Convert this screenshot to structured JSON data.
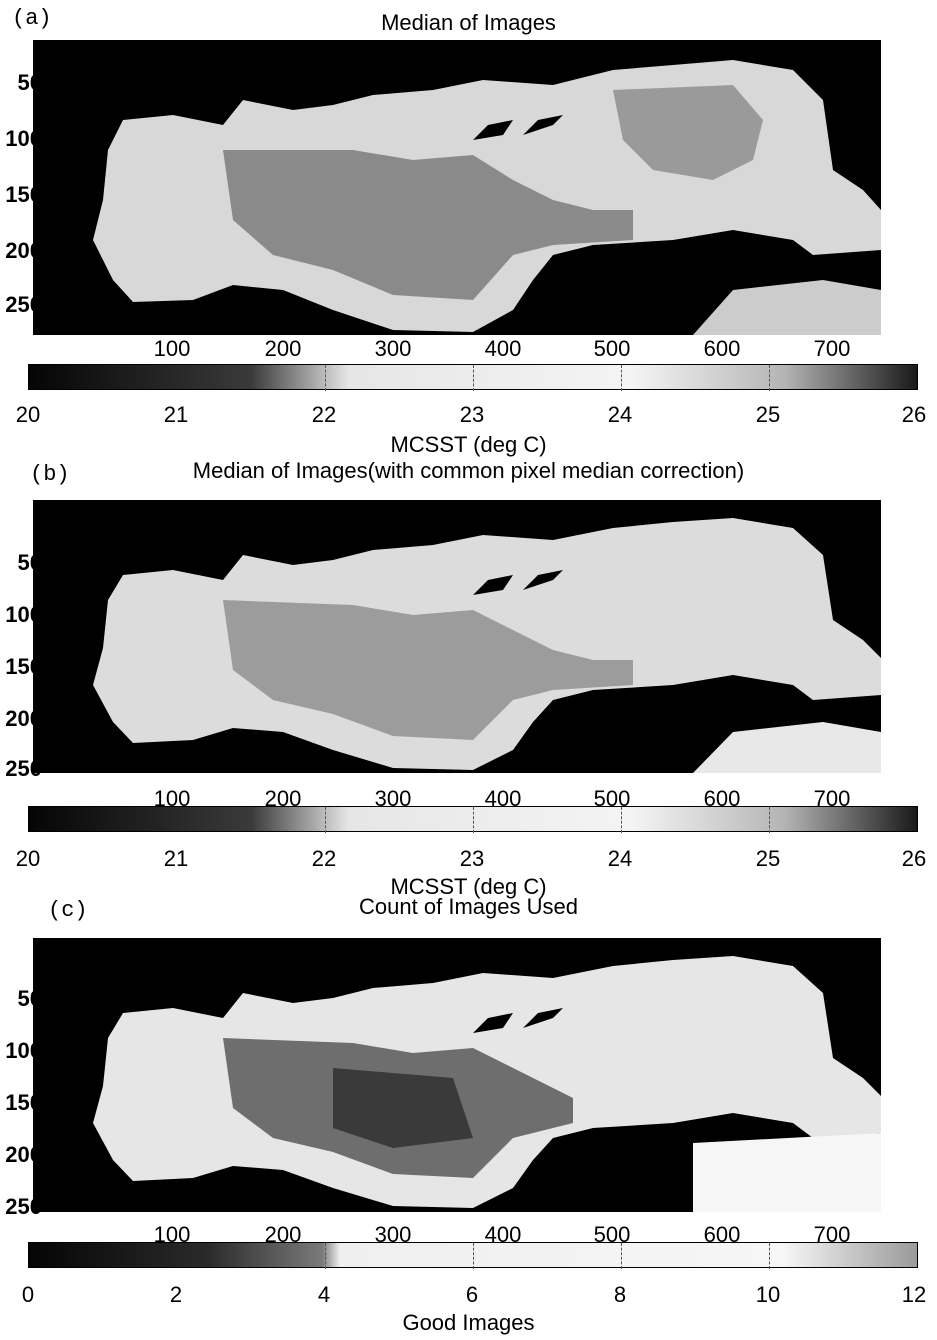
{
  "panels": [
    {
      "letter": "(a)",
      "title": "Median of Images",
      "y_ticks": [
        "50",
        "100",
        "150",
        "200",
        "250"
      ],
      "x_ticks": [
        "100",
        "200",
        "300",
        "400",
        "500",
        "600",
        "700"
      ],
      "colorbar_ticks": [
        "20",
        "21",
        "22",
        "23",
        "24",
        "25",
        "26"
      ],
      "colorbar_label": "MCSST (deg C)"
    },
    {
      "letter": "(b)",
      "title": "Median of Images(with common pixel median correction)",
      "y_ticks": [
        "50",
        "100",
        "150",
        "200",
        "250"
      ],
      "x_ticks": [
        "100",
        "200",
        "300",
        "400",
        "500",
        "600",
        "700"
      ],
      "colorbar_ticks": [
        "20",
        "21",
        "22",
        "23",
        "24",
        "25",
        "26"
      ],
      "colorbar_label": "MCSST (deg C)"
    },
    {
      "letter": "(c)",
      "title": "Count of Images Used",
      "y_ticks": [
        "50",
        "100",
        "150",
        "200",
        "250"
      ],
      "x_ticks": [
        "100",
        "200",
        "300",
        "400",
        "500",
        "600",
        "700"
      ],
      "colorbar_ticks": [
        "0",
        "2",
        "4",
        "6",
        "8",
        "10",
        "12"
      ],
      "colorbar_label": "Good Images"
    }
  ]
}
